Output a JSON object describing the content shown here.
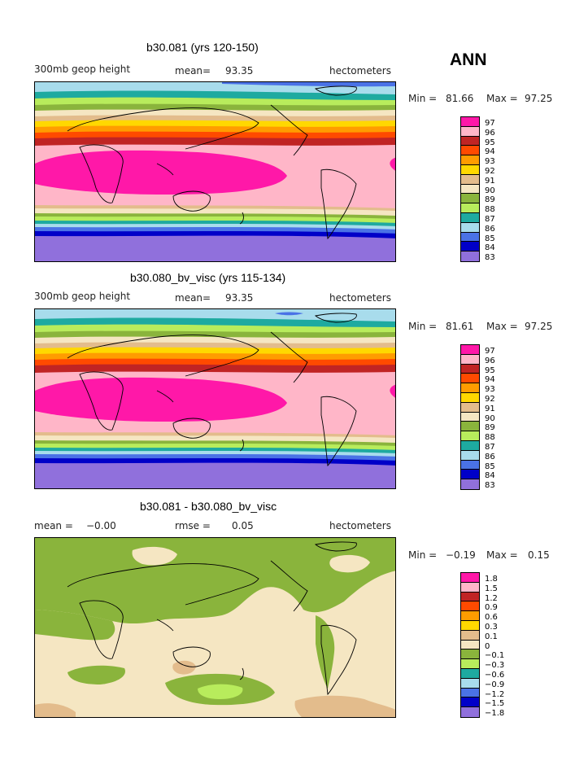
{
  "page_title": "ANN",
  "panels": [
    {
      "title": "b30.081 (yrs 120-150)",
      "left_label": "300mb geop height",
      "mean_label": "mean=",
      "mean_value": "93.35",
      "units": "hectometers",
      "min_label": "Min =",
      "min_value": "81.66",
      "max_label": "Max =",
      "max_value": "97.25"
    },
    {
      "title": "b30.080_bv_visc (yrs 115-134)",
      "left_label": "300mb geop height",
      "mean_label": "mean=",
      "mean_value": "93.35",
      "units": "hectometers",
      "min_label": "Min =",
      "min_value": "81.61",
      "max_label": "Max =",
      "max_value": "97.25"
    },
    {
      "title": "b30.081 - b30.080_bv_visc",
      "left_label": "mean =",
      "left_value": "−0.00",
      "mean_label": "rmse =",
      "mean_value": "0.05",
      "units": "hectometers",
      "min_label": "Min =",
      "min_value": "−0.19",
      "max_label": "Max =",
      "max_value": "0.15"
    }
  ],
  "legend_abs": {
    "labels": [
      "97",
      "96",
      "95",
      "94",
      "93",
      "92",
      "91",
      "90",
      "89",
      "88",
      "87",
      "86",
      "85",
      "84",
      "83"
    ],
    "colors": [
      "#ff18a8",
      "#ffb6c8",
      "#c02424",
      "#ff4a00",
      "#ff9c00",
      "#ffd800",
      "#e3bc8c",
      "#f5e6c2",
      "#8ab43c",
      "#b8ec5c",
      "#1eaaa0",
      "#a8dcec",
      "#4a72e6",
      "#0000c8",
      "#9070dc"
    ]
  },
  "legend_diff": {
    "labels": [
      "1.8",
      "1.5",
      "1.2",
      "0.9",
      "0.6",
      "0.3",
      "0.1",
      "0",
      "−0.1",
      "−0.3",
      "−0.6",
      "−0.9",
      "−1.2",
      "−1.5",
      "−1.8"
    ],
    "colors": [
      "#ff18a8",
      "#ffb6c8",
      "#c02424",
      "#ff4a00",
      "#ff9c00",
      "#ffd800",
      "#e3bc8c",
      "#f5e6c2",
      "#8ab43c",
      "#b8ec5c",
      "#1eaaa0",
      "#a8dcec",
      "#4a72e6",
      "#0000c8",
      "#9070dc"
    ]
  }
}
